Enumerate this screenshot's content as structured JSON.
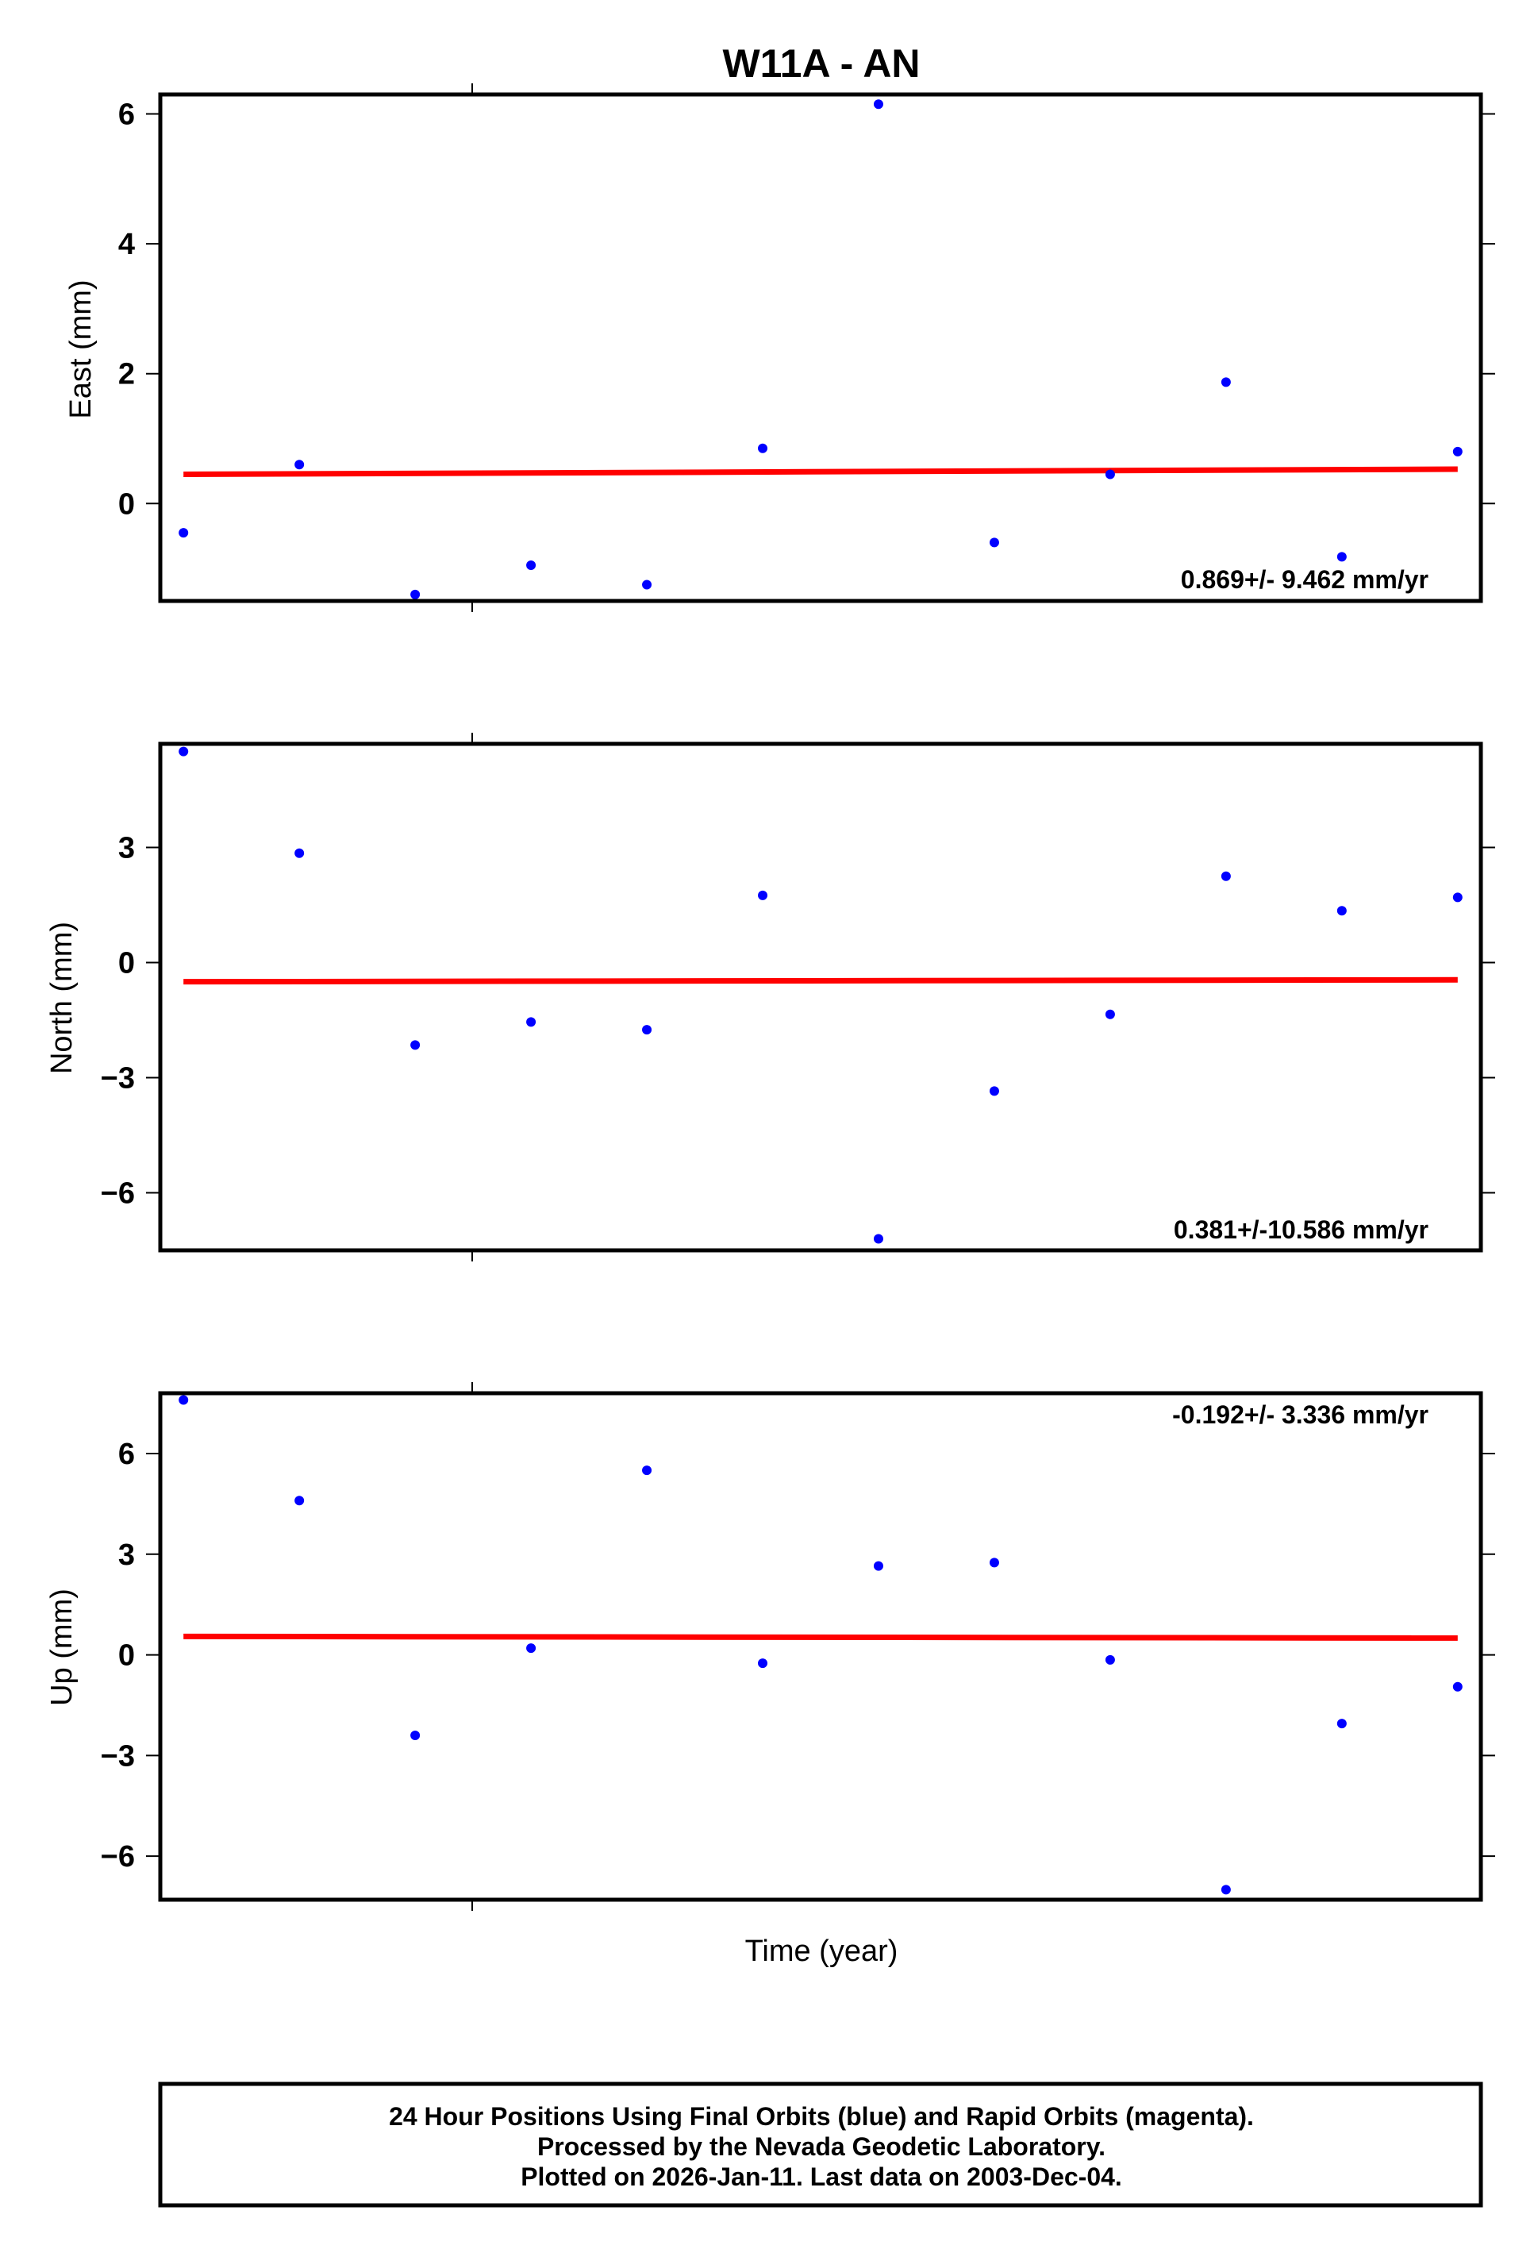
{
  "title": "W11A - AN",
  "xlabel": "Time (year)",
  "footer": {
    "line1": "24 Hour Positions Using Final Orbits (blue) and Rapid Orbits (magenta).",
    "line2": "Processed by the Nevada Geodetic Laboratory.",
    "line3": "Plotted on 2026-Jan-11. Last data on 2003-Dec-04."
  },
  "colors": {
    "points": "#0000ff",
    "trend": "#ff0000",
    "axes": "#000000"
  },
  "chart_data": [
    {
      "type": "scatter",
      "ylabel": "East (mm)",
      "ylim": [
        -1.5,
        6.3
      ],
      "yticks": [
        0,
        2,
        4,
        6
      ],
      "rate_label": "0.869+/- 9.462 mm/yr",
      "rate_position": "bottom-right",
      "x": [
        1,
        2,
        3,
        4,
        5,
        6,
        7,
        8,
        9,
        10,
        11,
        12
      ],
      "y": [
        -0.45,
        0.6,
        -1.4,
        -0.95,
        -1.25,
        0.85,
        6.15,
        -0.6,
        0.45,
        1.87,
        -0.82,
        0.8
      ],
      "trend": {
        "start": 0.45,
        "end": 0.53
      }
    },
    {
      "type": "scatter",
      "ylabel": "North (mm)",
      "ylim": [
        -7.5,
        5.7
      ],
      "yticks": [
        -6,
        -3,
        0,
        3
      ],
      "rate_label": "0.381+/-10.586 mm/yr",
      "rate_position": "bottom-right",
      "x": [
        1,
        2,
        3,
        4,
        5,
        6,
        7,
        8,
        9,
        10,
        11,
        12
      ],
      "y": [
        5.5,
        2.85,
        -2.15,
        -1.55,
        -1.75,
        1.75,
        -7.2,
        -3.35,
        -1.35,
        2.25,
        1.35,
        1.7
      ],
      "trend": {
        "start": -0.5,
        "end": -0.45
      }
    },
    {
      "type": "scatter",
      "ylabel": "Up (mm)",
      "ylim": [
        -7.3,
        7.8
      ],
      "yticks": [
        -6,
        -3,
        0,
        3,
        6
      ],
      "rate_label": "-0.192+/- 3.336 mm/yr",
      "rate_position": "top-right",
      "x": [
        1,
        2,
        3,
        4,
        5,
        6,
        7,
        8,
        9,
        10,
        11,
        12
      ],
      "y": [
        7.6,
        4.6,
        -2.4,
        0.2,
        5.5,
        -0.25,
        2.65,
        2.75,
        -0.15,
        -7.0,
        -2.05,
        -0.95
      ],
      "trend": {
        "start": 0.55,
        "end": 0.5
      }
    }
  ]
}
